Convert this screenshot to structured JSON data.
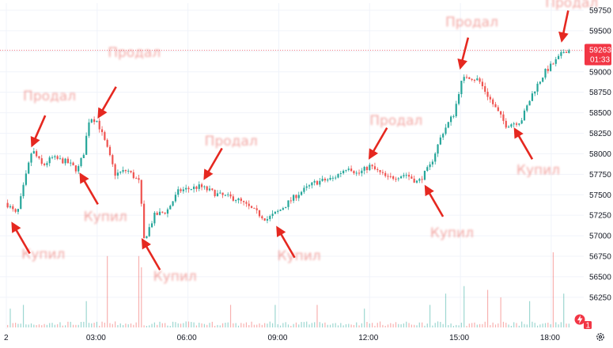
{
  "chart_data": {
    "type": "candlestick",
    "y_axis": {
      "ticks": [
        "59750",
        "59500",
        "59250",
        "59000",
        "58750",
        "58500",
        "58250",
        "58000",
        "57750",
        "57500",
        "57250",
        "57000",
        "56750",
        "56500",
        "56250"
      ],
      "range": [
        56000,
        59850
      ],
      "grid": true
    },
    "x_axis": {
      "ticks": [
        "2",
        "03:00",
        "06:00",
        "09:00",
        "12:00",
        "15:00",
        "18:00"
      ],
      "range_hours": [
        0,
        18.6
      ]
    },
    "price_path": [
      {
        "t": 0.0,
        "p": 57400
      },
      {
        "t": 0.35,
        "p": 57250
      },
      {
        "t": 0.6,
        "p": 57650
      },
      {
        "t": 0.85,
        "p": 58050
      },
      {
        "t": 1.2,
        "p": 57850
      },
      {
        "t": 1.5,
        "p": 57950
      },
      {
        "t": 2.0,
        "p": 57900
      },
      {
        "t": 2.35,
        "p": 57800
      },
      {
        "t": 2.55,
        "p": 58000
      },
      {
        "t": 2.75,
        "p": 58450
      },
      {
        "t": 3.0,
        "p": 58400
      },
      {
        "t": 3.3,
        "p": 58100
      },
      {
        "t": 3.6,
        "p": 57750
      },
      {
        "t": 4.0,
        "p": 57800
      },
      {
        "t": 4.4,
        "p": 57650
      },
      {
        "t": 4.55,
        "p": 56950
      },
      {
        "t": 4.9,
        "p": 57250
      },
      {
        "t": 5.3,
        "p": 57300
      },
      {
        "t": 5.7,
        "p": 57550
      },
      {
        "t": 6.4,
        "p": 57600
      },
      {
        "t": 7.0,
        "p": 57500
      },
      {
        "t": 7.6,
        "p": 57450
      },
      {
        "t": 8.2,
        "p": 57300
      },
      {
        "t": 8.6,
        "p": 57200
      },
      {
        "t": 9.0,
        "p": 57300
      },
      {
        "t": 9.6,
        "p": 57500
      },
      {
        "t": 10.2,
        "p": 57650
      },
      {
        "t": 10.8,
        "p": 57700
      },
      {
        "t": 11.3,
        "p": 57850
      },
      {
        "t": 11.6,
        "p": 57750
      },
      {
        "t": 12.0,
        "p": 57850
      },
      {
        "t": 12.6,
        "p": 57700
      },
      {
        "t": 13.2,
        "p": 57750
      },
      {
        "t": 13.6,
        "p": 57650
      },
      {
        "t": 14.0,
        "p": 57850
      },
      {
        "t": 14.4,
        "p": 58250
      },
      {
        "t": 14.8,
        "p": 58500
      },
      {
        "t": 15.0,
        "p": 58850
      },
      {
        "t": 15.2,
        "p": 58950
      },
      {
        "t": 15.6,
        "p": 58900
      },
      {
        "t": 16.0,
        "p": 58650
      },
      {
        "t": 16.5,
        "p": 58350
      },
      {
        "t": 17.0,
        "p": 58400
      },
      {
        "t": 17.4,
        "p": 58750
      },
      {
        "t": 17.8,
        "p": 59000
      },
      {
        "t": 18.2,
        "p": 59150
      },
      {
        "t": 18.45,
        "p": 59263
      }
    ],
    "volume_spikes": [
      {
        "t": 0.1,
        "v": 0.25
      },
      {
        "t": 0.55,
        "v": 0.3
      },
      {
        "t": 2.65,
        "v": 0.35
      },
      {
        "t": 3.35,
        "v": 0.95
      },
      {
        "t": 4.35,
        "v": 0.95
      },
      {
        "t": 4.5,
        "v": 0.8
      },
      {
        "t": 7.4,
        "v": 0.3
      },
      {
        "t": 8.9,
        "v": 0.3
      },
      {
        "t": 10.3,
        "v": 0.3
      },
      {
        "t": 11.8,
        "v": 0.25
      },
      {
        "t": 14.0,
        "v": 0.3
      },
      {
        "t": 14.5,
        "v": 0.45
      },
      {
        "t": 15.1,
        "v": 0.55
      },
      {
        "t": 15.9,
        "v": 0.5
      },
      {
        "t": 16.3,
        "v": 0.4
      },
      {
        "t": 17.3,
        "v": 0.35
      },
      {
        "t": 18.1,
        "v": 1.0
      },
      {
        "t": 18.4,
        "v": 0.45
      }
    ],
    "last_price": {
      "value": "59263",
      "countdown": "01:33"
    },
    "annotations": [
      {
        "text": "Продал",
        "x": 0.55,
        "price": 58650,
        "arrow_to": [
          0.85,
          58100
        ]
      },
      {
        "text": "Купил",
        "x": 0.5,
        "price": 56720,
        "arrow_to": [
          0.2,
          57150
        ]
      },
      {
        "text": "Продал",
        "x": 3.35,
        "price": 59180,
        "arrow_to": [
          3.05,
          58450
        ]
      },
      {
        "text": "Купил",
        "x": 2.55,
        "price": 57180,
        "arrow_to": [
          2.45,
          57750
        ]
      },
      {
        "text": "Купил",
        "x": 4.85,
        "price": 56450,
        "arrow_to": [
          4.5,
          56950
        ]
      },
      {
        "text": "Продал",
        "x": 6.55,
        "price": 58100,
        "arrow_to": [
          6.55,
          57700
        ]
      },
      {
        "text": "Купил",
        "x": 8.95,
        "price": 56700,
        "arrow_to": [
          8.95,
          57100
        ]
      },
      {
        "text": "Продал",
        "x": 12.0,
        "price": 58350,
        "arrow_to": [
          12.0,
          57950
        ]
      },
      {
        "text": "Купил",
        "x": 14.0,
        "price": 56980,
        "arrow_to": [
          13.85,
          57600
        ]
      },
      {
        "text": "Продал",
        "x": 14.5,
        "price": 59550,
        "arrow_to": [
          15.0,
          59050
        ]
      },
      {
        "text": "Купил",
        "x": 16.85,
        "price": 57750,
        "arrow_to": [
          16.8,
          58300
        ]
      },
      {
        "text": "Продал",
        "x": 17.8,
        "price": 59790,
        "arrow_to": [
          18.35,
          59380
        ]
      }
    ],
    "colors": {
      "up": "#26a69a",
      "down": "#ef5350",
      "arrow": "#e52820",
      "annotation": "#e8605a",
      "grid": "#f0f3fa",
      "price_tag": "#f23645",
      "last_price_line": "#f7525f",
      "lightning_badge": "#f23645"
    }
  },
  "badges": {
    "lightning_count": "1"
  },
  "icons": {
    "lightning": "lightning-icon",
    "settings": "gear-icon"
  }
}
